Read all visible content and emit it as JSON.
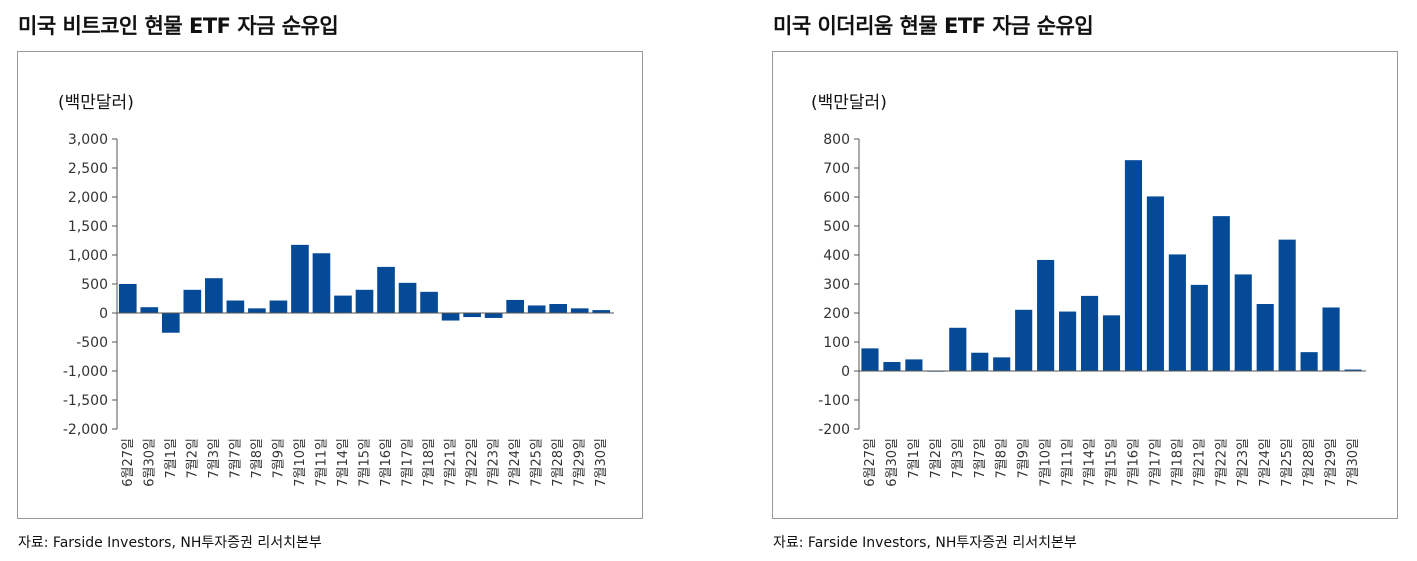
{
  "charts": [
    {
      "title": "미국 비트코인 현물 ETF 자금 순유입",
      "unit": "(백만달러)",
      "source": "자료: Farside Investors, NH투자증권 리서치본부",
      "chart_data": {
        "type": "bar",
        "title": "미국 비트코인 현물 ETF 자금 순유입",
        "ylabel": "(백만달러)",
        "ylim": [
          -2000,
          3000
        ],
        "yticks": [
          3000,
          2500,
          2000,
          1500,
          1000,
          500,
          0,
          -500,
          -1000,
          -1500,
          -2000
        ],
        "ytick_labels": [
          "3,000",
          "2,500",
          "2,000",
          "1,500",
          "1,000",
          "500",
          "0",
          "-500",
          "-1,000",
          "-1,500",
          "-2,000"
        ],
        "categories": [
          "6월27일",
          "6월30일",
          "7월1일",
          "7월2일",
          "7월3일",
          "7월7일",
          "7월8일",
          "7월9일",
          "7월10일",
          "7월11일",
          "7월14일",
          "7월15일",
          "7월16일",
          "7월17일",
          "7월18일",
          "7월21일",
          "7월22일",
          "7월23일",
          "7월24일",
          "7월25일",
          "7월28일",
          "7월29일",
          "7월30일"
        ],
        "values": [
          500,
          100,
          -340,
          400,
          600,
          215,
          80,
          215,
          1175,
          1030,
          300,
          400,
          795,
          520,
          365,
          -130,
          -70,
          -85,
          225,
          130,
          155,
          80,
          50
        ],
        "color": "#044a97"
      }
    },
    {
      "title": "미국 이더리움 현물 ETF 자금 순유입",
      "unit": "(백만달러)",
      "source": "자료: Farside Investors, NH투자증권 리서치본부",
      "chart_data": {
        "type": "bar",
        "title": "미국 이더리움 현물 ETF 자금 순유입",
        "ylabel": "(백만달러)",
        "ylim": [
          -200,
          800
        ],
        "yticks": [
          800,
          700,
          600,
          500,
          400,
          300,
          200,
          100,
          0,
          -100,
          -200
        ],
        "ytick_labels": [
          "800",
          "700",
          "600",
          "500",
          "400",
          "300",
          "200",
          "100",
          "0",
          "-100",
          "-200"
        ],
        "categories": [
          "6월27일",
          "6월30일",
          "7월1일",
          "7월2일",
          "7월3일",
          "7월7일",
          "7월8일",
          "7월9일",
          "7월10일",
          "7월11일",
          "7월14일",
          "7월15일",
          "7월16일",
          "7월17일",
          "7월18일",
          "7월21일",
          "7월22일",
          "7월23일",
          "7월24일",
          "7월25일",
          "7월28일",
          "7월29일",
          "7월30일"
        ],
        "values": [
          78,
          31,
          40,
          1,
          149,
          63,
          47,
          211,
          383,
          205,
          259,
          192,
          727,
          602,
          402,
          297,
          534,
          333,
          231,
          453,
          65,
          219,
          5
        ],
        "color": "#044a97"
      }
    }
  ]
}
